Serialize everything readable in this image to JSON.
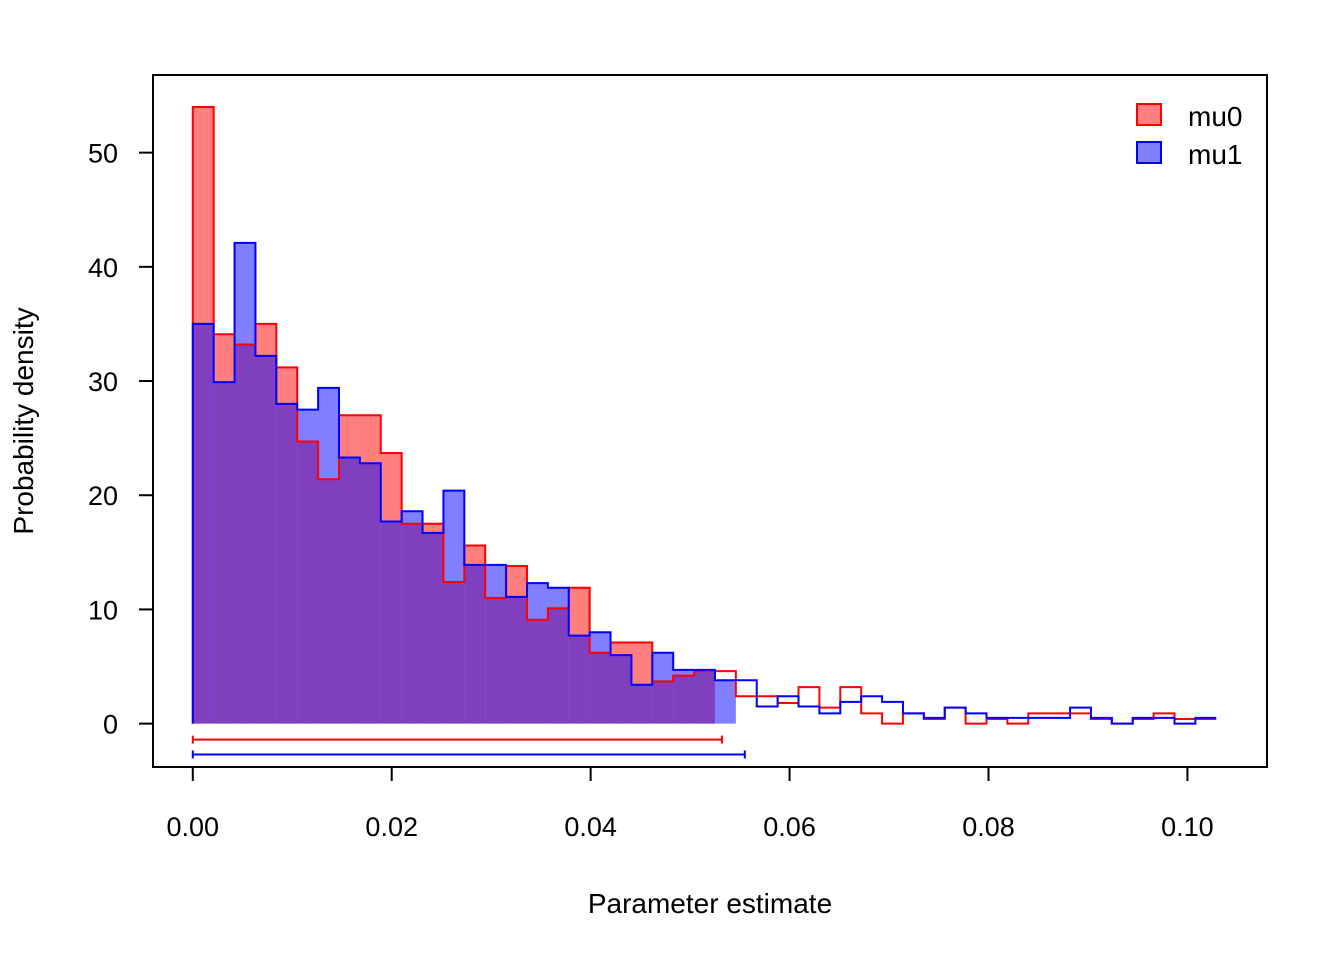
{
  "chart_data": {
    "type": "histogram",
    "title": "",
    "xlabel": "Parameter estimate",
    "ylabel": "Probability density",
    "xlim": [
      -0.004,
      0.108
    ],
    "ylim": [
      -3.8,
      56.8
    ],
    "x_ticks": [
      0.0,
      0.02,
      0.04,
      0.06,
      0.08,
      0.1
    ],
    "x_tick_labels": [
      "0.00",
      "0.02",
      "0.04",
      "0.06",
      "0.08",
      "0.10"
    ],
    "y_ticks": [
      0,
      10,
      20,
      30,
      40,
      50
    ],
    "y_tick_labels": [
      "0",
      "10",
      "20",
      "30",
      "40",
      "50"
    ],
    "bin_width": 0.0021,
    "legend": {
      "position": "top-right",
      "entries": [
        "mu0",
        "mu1"
      ]
    },
    "series": [
      {
        "name": "mu0",
        "color": "#ff0000",
        "fill": "rgba(255,0,0,0.5)",
        "densities": [
          54,
          34.1,
          33.2,
          35,
          31.2,
          24.7,
          21.4,
          27,
          27,
          23.7,
          17.5,
          17.5,
          12.4,
          15.6,
          11,
          13.8,
          9.1,
          10.1,
          11.9,
          6.2,
          7.1,
          7.1,
          3.7,
          4.2,
          4.6,
          4.6,
          2.4,
          2.4,
          1.8,
          3.2,
          1.4,
          3.2,
          0.9,
          0,
          0.9,
          0.4,
          1.4,
          0,
          0.4,
          0,
          0.9,
          0.9,
          0.9,
          0.4,
          0,
          0.4,
          0.9,
          0.4,
          0.4
        ],
        "shaded_bins": 25,
        "interval": [
          0.0,
          0.0532
        ]
      },
      {
        "name": "mu1",
        "color": "#0000ff",
        "fill": "rgba(0,0,255,0.5)",
        "densities": [
          35,
          29.9,
          42.1,
          32.2,
          28,
          27.5,
          29.4,
          23.3,
          22.8,
          17.7,
          18.6,
          16.7,
          20.4,
          13.9,
          13.9,
          11.1,
          12.3,
          11.9,
          7.7,
          8,
          6,
          3.4,
          6.2,
          4.7,
          4.7,
          3.8,
          3.8,
          1.5,
          2.4,
          1.5,
          0.9,
          1.9,
          2.4,
          1.9,
          0.9,
          0.5,
          1.4,
          0.9,
          0.5,
          0.5,
          0.5,
          0.5,
          1.4,
          0.5,
          0,
          0.5,
          0.5,
          0,
          0.5
        ],
        "shaded_bins": 26,
        "interval": [
          0.0,
          0.0555
        ]
      }
    ]
  }
}
